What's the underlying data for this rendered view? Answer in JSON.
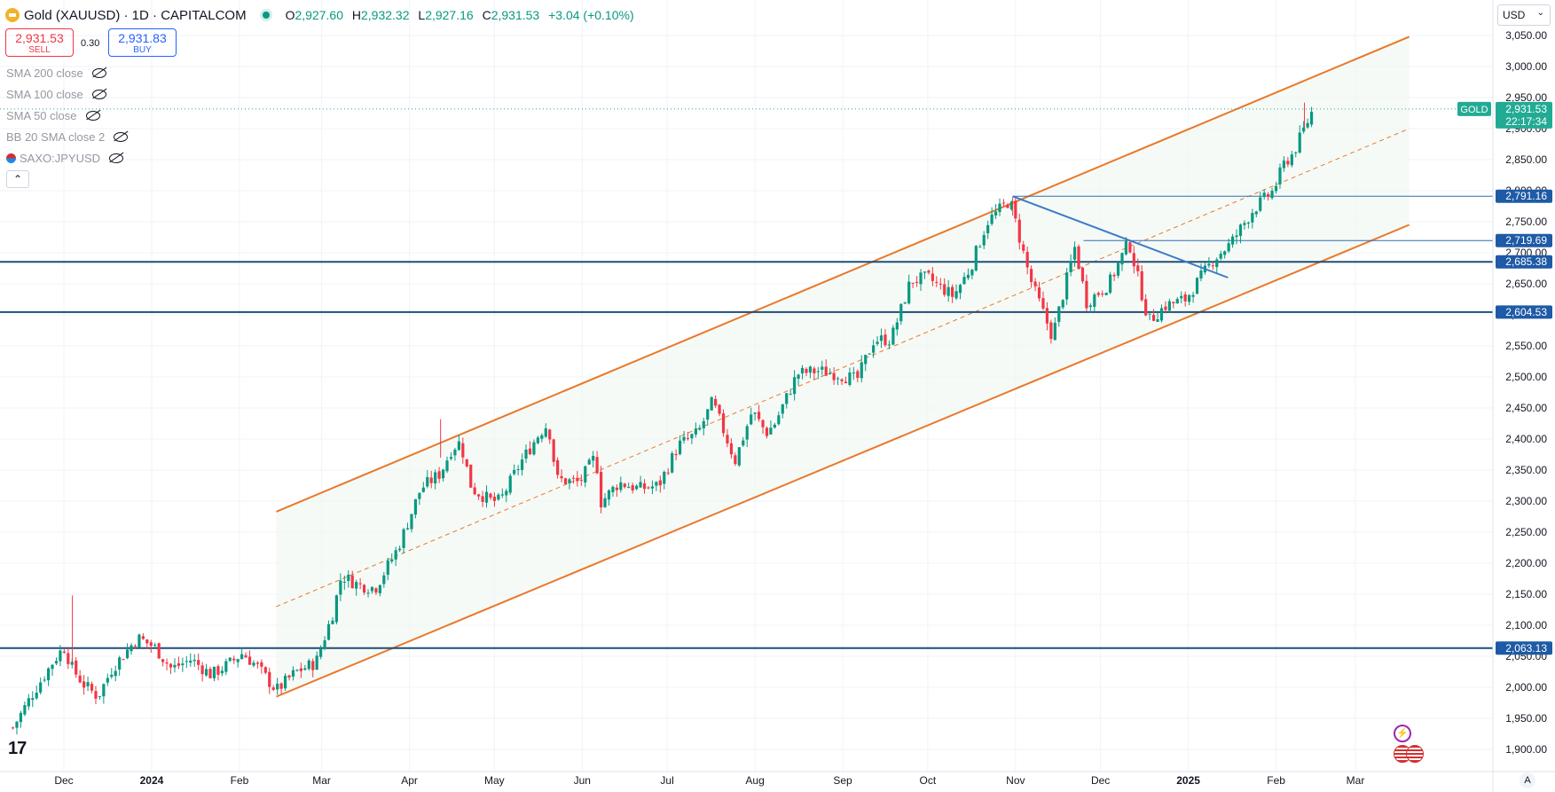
{
  "header": {
    "symbol": "Gold (XAUUSD) · 1D · CAPITALCOM",
    "ohlc": {
      "o_label": "O",
      "o": "2,927.60",
      "h_label": "H",
      "h": "2,932.32",
      "l_label": "L",
      "l": "2,927.16",
      "c_label": "C",
      "c": "2,931.53",
      "change": "+3.04 (+0.10%)"
    }
  },
  "trade": {
    "sell_price": "2,931.53",
    "sell_label": "SELL",
    "spread": "0.30",
    "buy_price": "2,931.83",
    "buy_label": "BUY"
  },
  "indicators": [
    {
      "label": "SMA 200 close"
    },
    {
      "label": "SMA 100 close"
    },
    {
      "label": "SMA 50 close"
    },
    {
      "label": "BB 20 SMA close 2"
    },
    {
      "label": "SAXO:JPYUSD"
    }
  ],
  "collapse_icon": "chevron-up-icon",
  "currency": "USD",
  "colors": {
    "up": "#089981",
    "down": "#f23645",
    "channel": "#e8792b",
    "level": "#1f4e79",
    "trendline": "#3a7bc8",
    "price_tag": "#22ab94"
  },
  "chart_data": {
    "type": "candlestick",
    "symbol": "GOLD",
    "last_price": "2,931.53",
    "countdown": "22:17:34",
    "ylim": [
      1900,
      3050
    ],
    "y_ticks": [
      "1,900.00",
      "1,950.00",
      "2,000.00",
      "2,050.00",
      "2,100.00",
      "2,150.00",
      "2,200.00",
      "2,250.00",
      "2,300.00",
      "2,350.00",
      "2,400.00",
      "2,450.00",
      "2,500.00",
      "2,550.00",
      "2,600.00",
      "2,650.00",
      "2,700.00",
      "2,750.00",
      "2,800.00",
      "2,850.00",
      "2,900.00",
      "2,950.00",
      "3,000.00",
      "3,050.00"
    ],
    "x_ticks": [
      {
        "label": "Dec",
        "date": "2023-12-01"
      },
      {
        "label": "2024",
        "date": "2024-01-01",
        "bold": true
      },
      {
        "label": "Feb",
        "date": "2024-02-01"
      },
      {
        "label": "Mar",
        "date": "2024-03-01"
      },
      {
        "label": "Apr",
        "date": "2024-04-01"
      },
      {
        "label": "May",
        "date": "2024-05-01"
      },
      {
        "label": "Jun",
        "date": "2024-06-01"
      },
      {
        "label": "Jul",
        "date": "2024-07-01"
      },
      {
        "label": "Aug",
        "date": "2024-08-01"
      },
      {
        "label": "Sep",
        "date": "2024-09-01"
      },
      {
        "label": "Oct",
        "date": "2024-10-01"
      },
      {
        "label": "Nov",
        "date": "2024-11-01"
      },
      {
        "label": "Dec",
        "date": "2024-12-01"
      },
      {
        "label": "2025",
        "date": "2025-01-01",
        "bold": true
      },
      {
        "label": "Feb",
        "date": "2025-02-01"
      },
      {
        "label": "Mar",
        "date": "2025-03-01"
      }
    ],
    "horizontal_levels": [
      {
        "price": 2791.16,
        "label": "2,791.16",
        "from": "2024-10-31"
      },
      {
        "price": 2719.69,
        "label": "2,719.69",
        "from": "2024-11-25"
      },
      {
        "price": 2685.38,
        "label": "2,685.38",
        "from": "full"
      },
      {
        "price": 2604.53,
        "label": "2,604.53",
        "from": "full"
      },
      {
        "price": 2063.13,
        "label": "2,063.13",
        "from": "full"
      }
    ],
    "channel": {
      "start_date": "2024-02-14",
      "end_date": "2025-03-20",
      "lower": [
        1985,
        2745
      ],
      "middle": [
        2130,
        2900
      ],
      "upper": [
        2283,
        3048
      ]
    },
    "trendline": {
      "from": [
        "2024-10-31",
        2791
      ],
      "to": [
        "2025-01-15",
        2660
      ]
    },
    "price_path": [
      [
        "2023-11-13",
        1935
      ],
      [
        "2023-11-20",
        1990
      ],
      [
        "2023-11-27",
        2040
      ],
      [
        "2023-12-01",
        2065
      ],
      [
        "2023-12-04",
        2030
      ],
      [
        "2023-12-08",
        2005
      ],
      [
        "2023-12-13",
        1985
      ],
      [
        "2023-12-18",
        2030
      ],
      [
        "2023-12-27",
        2080
      ],
      [
        "2024-01-02",
        2065
      ],
      [
        "2024-01-08",
        2030
      ],
      [
        "2024-01-15",
        2045
      ],
      [
        "2024-01-22",
        2020
      ],
      [
        "2024-01-29",
        2040
      ],
      [
        "2024-02-02",
        2055
      ],
      [
        "2024-02-07",
        2035
      ],
      [
        "2024-02-14",
        1995
      ],
      [
        "2024-02-21",
        2025
      ],
      [
        "2024-02-28",
        2040
      ],
      [
        "2024-03-05",
        2120
      ],
      [
        "2024-03-08",
        2180
      ],
      [
        "2024-03-14",
        2165
      ],
      [
        "2024-03-20",
        2160
      ],
      [
        "2024-03-28",
        2225
      ],
      [
        "2024-04-05",
        2320
      ],
      [
        "2024-04-12",
        2345
      ],
      [
        "2024-04-16",
        2385
      ],
      [
        "2024-04-19",
        2395
      ],
      [
        "2024-04-23",
        2320
      ],
      [
        "2024-04-30",
        2300
      ],
      [
        "2024-05-03",
        2300
      ],
      [
        "2024-05-10",
        2360
      ],
      [
        "2024-05-17",
        2410
      ],
      [
        "2024-05-20",
        2425
      ],
      [
        "2024-05-23",
        2335
      ],
      [
        "2024-05-31",
        2330
      ],
      [
        "2024-06-06",
        2375
      ],
      [
        "2024-06-07",
        2295
      ],
      [
        "2024-06-14",
        2330
      ],
      [
        "2024-06-21",
        2320
      ],
      [
        "2024-06-28",
        2325
      ],
      [
        "2024-07-05",
        2390
      ],
      [
        "2024-07-12",
        2410
      ],
      [
        "2024-07-17",
        2460
      ],
      [
        "2024-07-25",
        2365
      ],
      [
        "2024-07-31",
        2445
      ],
      [
        "2024-08-05",
        2410
      ],
      [
        "2024-08-08",
        2425
      ],
      [
        "2024-08-16",
        2505
      ],
      [
        "2024-08-23",
        2510
      ],
      [
        "2024-08-30",
        2505
      ],
      [
        "2024-09-06",
        2495
      ],
      [
        "2024-09-12",
        2560
      ],
      [
        "2024-09-18",
        2560
      ],
      [
        "2024-09-25",
        2655
      ],
      [
        "2024-10-01",
        2660
      ],
      [
        "2024-10-10",
        2630
      ],
      [
        "2024-10-16",
        2675
      ],
      [
        "2024-10-22",
        2750
      ],
      [
        "2024-10-30",
        2785
      ],
      [
        "2024-11-06",
        2660
      ],
      [
        "2024-11-14",
        2565
      ],
      [
        "2024-11-22",
        2710
      ],
      [
        "2024-11-26",
        2620
      ],
      [
        "2024-12-04",
        2650
      ],
      [
        "2024-12-11",
        2718
      ],
      [
        "2024-12-18",
        2590
      ],
      [
        "2024-12-24",
        2615
      ],
      [
        "2024-12-31",
        2625
      ],
      [
        "2025-01-10",
        2690
      ],
      [
        "2025-01-16",
        2715
      ],
      [
        "2025-01-24",
        2770
      ],
      [
        "2025-01-31",
        2800
      ],
      [
        "2025-02-04",
        2845
      ],
      [
        "2025-02-07",
        2860
      ],
      [
        "2025-02-11",
        2900
      ],
      [
        "2025-02-14",
        2931
      ]
    ]
  }
}
